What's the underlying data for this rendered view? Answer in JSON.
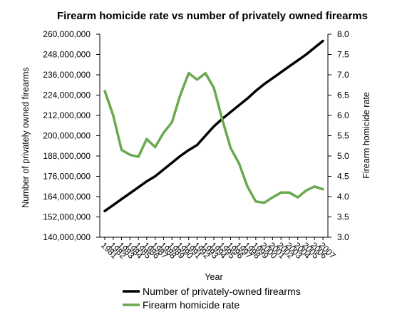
{
  "chart_data": {
    "type": "line",
    "title": "Firearm homicide rate vs number of privately owned firearms",
    "xlabel": "Year",
    "ylabel_left": "Number of privately owned firearms",
    "ylabel_right": "Firearm homicide rate",
    "x": [
      "1981",
      "1982",
      "1983",
      "1984",
      "1985",
      "1986",
      "1987",
      "1988",
      "1989",
      "1990",
      "1991",
      "1992",
      "1993",
      "1994",
      "1995",
      "1996",
      "1997",
      "1998",
      "1999",
      "2000",
      "2001",
      "2002",
      "2003",
      "2004",
      "2005",
      "2006",
      "2007"
    ],
    "y_left_ticks": [
      "140,000,000",
      "152,000,000",
      "164,000,000",
      "176,000,000",
      "188,000,000",
      "200,000,000",
      "212,000,000",
      "224,000,000",
      "236,000,000",
      "248,000,000",
      "260,000,000"
    ],
    "y_right_ticks": [
      "3.0",
      "3.5",
      "4.0",
      "4.5",
      "5.0",
      "5.5",
      "6.0",
      "6.5",
      "7.0",
      "7.5",
      "8.0"
    ],
    "ylim_left": [
      140000000,
      260000000
    ],
    "ylim_right": [
      3.0,
      8.0
    ],
    "grid": false,
    "legend_position": "bottom",
    "series": [
      {
        "name": "Number of privately-owned firearms",
        "axis": "left",
        "color": "#000000",
        "values": [
          155500000,
          159000000,
          162500000,
          166000000,
          169500000,
          173000000,
          176000000,
          180000000,
          184000000,
          188000000,
          191500000,
          194500000,
          200000000,
          205500000,
          210000000,
          214000000,
          218000000,
          222000000,
          226500000,
          230500000,
          234000000,
          237500000,
          241000000,
          244500000,
          248000000,
          252000000,
          256000000
        ]
      },
      {
        "name": "Firearm homicide rate",
        "axis": "right",
        "color": "#6aa84f",
        "values": [
          6.6,
          6.0,
          5.15,
          5.03,
          4.98,
          5.42,
          5.22,
          5.57,
          5.83,
          6.5,
          7.04,
          6.88,
          7.04,
          6.68,
          5.9,
          5.2,
          4.82,
          4.25,
          3.88,
          3.85,
          3.98,
          4.1,
          4.1,
          3.98,
          4.15,
          4.25,
          4.18
        ]
      }
    ]
  }
}
